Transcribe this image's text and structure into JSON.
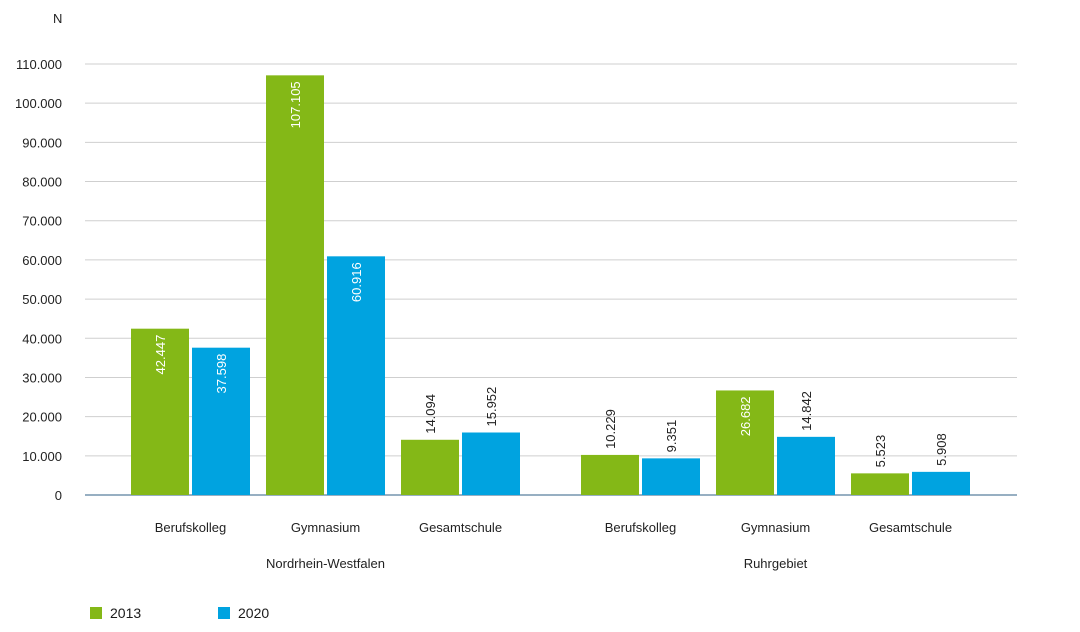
{
  "chart_data": {
    "type": "bar",
    "ylabel": "N",
    "ylim": [
      0,
      110000
    ],
    "yticks": [
      0,
      10000,
      20000,
      30000,
      40000,
      50000,
      60000,
      70000,
      80000,
      90000,
      100000,
      110000
    ],
    "ytick_labels": [
      "0",
      "10.000",
      "20.000",
      "30.000",
      "40.000",
      "50.000",
      "60.000",
      "70.000",
      "80.000",
      "90.000",
      "100.000",
      "110.000"
    ],
    "grid": true,
    "legend_position": "bottom-left",
    "colors": {
      "2013": "#84b817",
      "2020": "#00a3e0"
    },
    "groups": [
      {
        "name": "Nordrhein-Westfalen",
        "categories": [
          "Berufskolleg",
          "Gymnasium",
          "Gesamtschule"
        ],
        "series": [
          {
            "name": "2013",
            "values": [
              42447,
              107105,
              14094
            ],
            "labels": [
              "42.447",
              "107.105",
              "14.094"
            ]
          },
          {
            "name": "2020",
            "values": [
              37598,
              60916,
              15952
            ],
            "labels": [
              "37.598",
              "60.916",
              "15.952"
            ]
          }
        ]
      },
      {
        "name": "Ruhrgebiet",
        "categories": [
          "Berufskolleg",
          "Gymnasium",
          "Gesamtschule"
        ],
        "series": [
          {
            "name": "2013",
            "values": [
              10229,
              26682,
              5523
            ],
            "labels": [
              "10.229",
              "26.682",
              "5.523"
            ]
          },
          {
            "name": "2020",
            "values": [
              9351,
              14842,
              5908
            ],
            "labels": [
              "9.351",
              "14.842",
              "5.908"
            ]
          }
        ]
      }
    ]
  },
  "legend": [
    {
      "label": "2013",
      "color": "#84b817"
    },
    {
      "label": "2020",
      "color": "#00a3e0"
    }
  ]
}
